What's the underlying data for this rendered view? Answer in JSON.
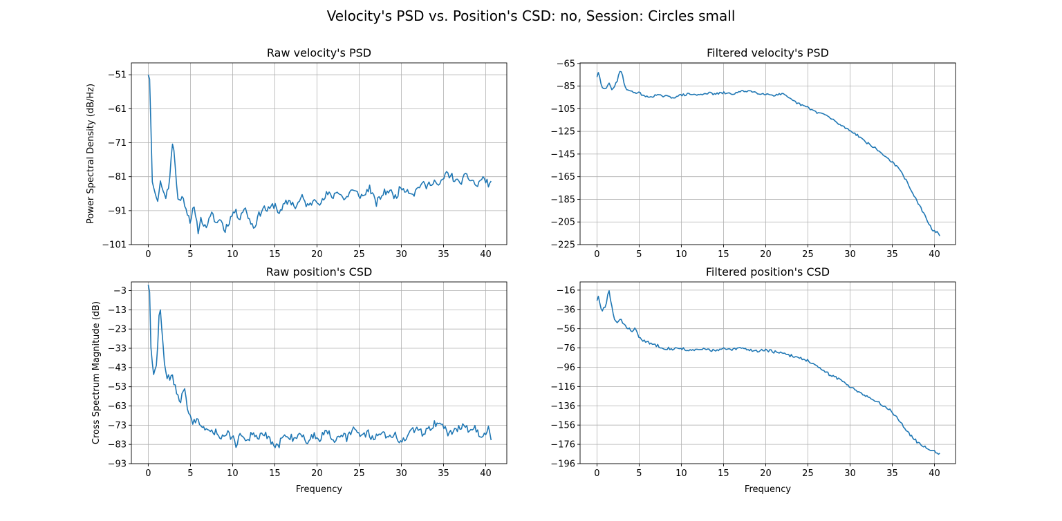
{
  "figure": {
    "title": "Velocity's PSD vs. Position's CSD: no, Session: Circles small",
    "line_color": "#1f77b4",
    "grid_color": "#b0b0b0",
    "grid": true
  },
  "chart_data": [
    {
      "id": "raw-velocity-psd",
      "type": "line",
      "title": "Raw velocity's PSD",
      "xlabel": "",
      "ylabel": "Power Spectral Density (dB/Hz)",
      "xlim": [
        -2,
        42.5
      ],
      "ylim": [
        -101,
        -47.5
      ],
      "xticks": [
        0,
        5,
        10,
        15,
        20,
        25,
        30,
        35,
        40
      ],
      "yticks": [
        -101,
        -91,
        -81,
        -71,
        -61,
        -51
      ],
      "x_start": 0,
      "x_step": 0.16,
      "x_count": 255,
      "anchors": [
        [
          0,
          -51
        ],
        [
          0.25,
          -53
        ],
        [
          0.4,
          -82
        ],
        [
          0.7,
          -84
        ],
        [
          0.9,
          -86.5
        ],
        [
          1.1,
          -87.5
        ],
        [
          1.4,
          -85
        ],
        [
          1.5,
          -80
        ],
        [
          1.7,
          -86
        ],
        [
          1.9,
          -85
        ],
        [
          2.1,
          -87
        ],
        [
          2.3,
          -85
        ],
        [
          2.5,
          -83
        ],
        [
          2.8,
          -72
        ],
        [
          2.95,
          -71
        ],
        [
          3.2,
          -78
        ],
        [
          3.5,
          -88
        ],
        [
          3.9,
          -87
        ],
        [
          4.3,
          -88.5
        ],
        [
          4.7,
          -92
        ],
        [
          5,
          -94
        ],
        [
          5.4,
          -90
        ],
        [
          5.6,
          -93
        ],
        [
          5.9,
          -97
        ],
        [
          6.3,
          -93
        ],
        [
          6.7,
          -96
        ],
        [
          7.2,
          -94
        ],
        [
          7.6,
          -92
        ],
        [
          8.1,
          -95
        ],
        [
          8.6,
          -93
        ],
        [
          9,
          -97
        ],
        [
          9.6,
          -94
        ],
        [
          10.2,
          -91
        ],
        [
          10.8,
          -93
        ],
        [
          11.4,
          -90
        ],
        [
          11.9,
          -93
        ],
        [
          12.5,
          -96
        ],
        [
          13,
          -93
        ],
        [
          13.6,
          -90
        ],
        [
          14.2,
          -91
        ],
        [
          15,
          -89
        ],
        [
          15.6,
          -92
        ],
        [
          16.2,
          -89
        ],
        [
          16.8,
          -88
        ],
        [
          17.5,
          -90
        ],
        [
          18.2,
          -87
        ],
        [
          19,
          -90
        ],
        [
          19.8,
          -87
        ],
        [
          20.5,
          -89
        ],
        [
          21.2,
          -86
        ],
        [
          21.8,
          -87
        ],
        [
          22.5,
          -85
        ],
        [
          23.3,
          -88
        ],
        [
          24,
          -85
        ],
        [
          24.8,
          -86
        ],
        [
          25.5,
          -87
        ],
        [
          26.2,
          -84
        ],
        [
          27,
          -89
        ],
        [
          27.8,
          -86
        ],
        [
          28.5,
          -85
        ],
        [
          29.3,
          -87
        ],
        [
          30,
          -84
        ],
        [
          30.8,
          -85
        ],
        [
          31.5,
          -86
        ],
        [
          32.3,
          -83
        ],
        [
          33,
          -84
        ],
        [
          33.8,
          -82
        ],
        [
          34.5,
          -84
        ],
        [
          35.3,
          -80
        ],
        [
          36,
          -81
        ],
        [
          36.8,
          -83
        ],
        [
          37.6,
          -81
        ],
        [
          38.4,
          -82
        ],
        [
          39,
          -84
        ],
        [
          39.6,
          -81
        ],
        [
          40.2,
          -83
        ],
        [
          40.5,
          -83
        ]
      ],
      "noise_amp": 1.1,
      "seed": 11
    },
    {
      "id": "filtered-velocity-psd",
      "type": "line",
      "title": "Filtered velocity's PSD",
      "xlabel": "",
      "ylabel": "",
      "xlim": [
        -2,
        42.5
      ],
      "ylim": [
        -225,
        -64.5
      ],
      "xticks": [
        0,
        5,
        10,
        15,
        20,
        25,
        30,
        35,
        40
      ],
      "yticks": [
        -225,
        -205,
        -185,
        -165,
        -145,
        -125,
        -105,
        -85,
        -65
      ],
      "x_start": 0,
      "x_step": 0.16,
      "x_count": 255,
      "anchors": [
        [
          0,
          -77
        ],
        [
          0.2,
          -72
        ],
        [
          0.5,
          -84
        ],
        [
          0.8,
          -88
        ],
        [
          1.2,
          -87
        ],
        [
          1.4,
          -81
        ],
        [
          1.7,
          -88
        ],
        [
          2,
          -86
        ],
        [
          2.4,
          -81
        ],
        [
          2.7,
          -72
        ],
        [
          3,
          -73
        ],
        [
          3.3,
          -86
        ],
        [
          4,
          -90
        ],
        [
          5,
          -91
        ],
        [
          6,
          -95
        ],
        [
          7,
          -93
        ],
        [
          8,
          -94
        ],
        [
          9,
          -95
        ],
        [
          10,
          -93
        ],
        [
          11,
          -92
        ],
        [
          12,
          -93
        ],
        [
          13,
          -91
        ],
        [
          14,
          -92
        ],
        [
          15,
          -91
        ],
        [
          16,
          -92
        ],
        [
          17,
          -90
        ],
        [
          18,
          -89
        ],
        [
          19,
          -91
        ],
        [
          20,
          -92
        ],
        [
          21,
          -93
        ],
        [
          22,
          -92
        ],
        [
          23,
          -97
        ],
        [
          24,
          -101
        ],
        [
          25,
          -104
        ],
        [
          26,
          -108
        ],
        [
          27,
          -110
        ],
        [
          28,
          -115
        ],
        [
          29,
          -120
        ],
        [
          30,
          -124
        ],
        [
          31,
          -129
        ],
        [
          32,
          -135
        ],
        [
          33,
          -140
        ],
        [
          34,
          -146
        ],
        [
          35,
          -152
        ],
        [
          36,
          -160
        ],
        [
          37,
          -173
        ],
        [
          38,
          -188
        ],
        [
          38.8,
          -198
        ],
        [
          39.3,
          -207
        ],
        [
          39.8,
          -212
        ],
        [
          40.3,
          -214
        ],
        [
          40.6,
          -217
        ]
      ],
      "noise_amp": 1.0,
      "seed": 29
    },
    {
      "id": "raw-position-csd",
      "type": "line",
      "title": "Raw position's CSD",
      "xlabel": "Frequency",
      "ylabel": "Cross Spectrum Magnitude (dB)",
      "xlim": [
        -2,
        42.5
      ],
      "ylim": [
        -93,
        1.5
      ],
      "xticks": [
        0,
        5,
        10,
        15,
        20,
        25,
        30,
        35,
        40
      ],
      "yticks": [
        -93,
        -83,
        -73,
        -63,
        -53,
        -43,
        -33,
        -23,
        -13,
        -3
      ],
      "x_start": 0,
      "x_step": 0.16,
      "x_count": 255,
      "anchors": [
        [
          0,
          0
        ],
        [
          0.15,
          -2
        ],
        [
          0.35,
          -38
        ],
        [
          0.5,
          -41
        ],
        [
          0.65,
          -46
        ],
        [
          0.9,
          -43
        ],
        [
          1.1,
          -33
        ],
        [
          1.3,
          -15
        ],
        [
          1.45,
          -14
        ],
        [
          1.65,
          -26
        ],
        [
          1.9,
          -40
        ],
        [
          2.2,
          -47
        ],
        [
          2.6,
          -50
        ],
        [
          2.8,
          -46
        ],
        [
          3.1,
          -53
        ],
        [
          3.4,
          -55
        ],
        [
          3.7,
          -60
        ],
        [
          4.1,
          -58
        ],
        [
          4.3,
          -54
        ],
        [
          4.6,
          -62
        ],
        [
          5,
          -69
        ],
        [
          5.4,
          -72
        ],
        [
          5.8,
          -70
        ],
        [
          6.3,
          -76
        ],
        [
          6.8,
          -74
        ],
        [
          7.3,
          -78
        ],
        [
          8,
          -76
        ],
        [
          8.6,
          -79
        ],
        [
          9.2,
          -77
        ],
        [
          10,
          -79
        ],
        [
          10.4,
          -83
        ],
        [
          11,
          -77
        ],
        [
          11.6,
          -82
        ],
        [
          12.2,
          -78
        ],
        [
          13,
          -80
        ],
        [
          13.6,
          -77
        ],
        [
          14.4,
          -81
        ],
        [
          15.3,
          -85
        ],
        [
          15.8,
          -80
        ],
        [
          16.5,
          -78
        ],
        [
          17.2,
          -80
        ],
        [
          18,
          -77
        ],
        [
          18.8,
          -82
        ],
        [
          19.6,
          -78
        ],
        [
          20.4,
          -80
        ],
        [
          21.2,
          -75
        ],
        [
          22,
          -81
        ],
        [
          22.8,
          -77
        ],
        [
          23.6,
          -80
        ],
        [
          24.4,
          -75
        ],
        [
          25.2,
          -78
        ],
        [
          26,
          -77
        ],
        [
          26.8,
          -80
        ],
        [
          27.6,
          -76
        ],
        [
          28.4,
          -80
        ],
        [
          29.2,
          -77
        ],
        [
          30,
          -83
        ],
        [
          30.8,
          -78
        ],
        [
          31.6,
          -75
        ],
        [
          32.4,
          -77
        ],
        [
          33.2,
          -75
        ],
        [
          34,
          -72
        ],
        [
          34.8,
          -72
        ],
        [
          35.6,
          -78
        ],
        [
          36.4,
          -75
        ],
        [
          37.2,
          -73
        ],
        [
          38,
          -76
        ],
        [
          38.8,
          -74
        ],
        [
          39.4,
          -81
        ],
        [
          40,
          -76
        ],
        [
          40.3,
          -74
        ],
        [
          40.6,
          -82
        ]
      ],
      "noise_amp": 2.0,
      "seed": 47
    },
    {
      "id": "filtered-position-csd",
      "type": "line",
      "title": "Filtered position's CSD",
      "xlabel": "Frequency",
      "ylabel": "",
      "xlim": [
        -2,
        42.5
      ],
      "ylim": [
        -196,
        -7.5
      ],
      "xticks": [
        0,
        5,
        10,
        15,
        20,
        25,
        30,
        35,
        40
      ],
      "yticks": [
        -196,
        -176,
        -156,
        -136,
        -116,
        -96,
        -76,
        -56,
        -36,
        -16
      ],
      "x_start": 0,
      "x_step": 0.16,
      "x_count": 255,
      "anchors": [
        [
          0,
          -27
        ],
        [
          0.15,
          -22
        ],
        [
          0.35,
          -30
        ],
        [
          0.55,
          -38
        ],
        [
          0.8,
          -35
        ],
        [
          1.05,
          -34
        ],
        [
          1.3,
          -20
        ],
        [
          1.45,
          -17
        ],
        [
          1.7,
          -30
        ],
        [
          2,
          -45
        ],
        [
          2.4,
          -50
        ],
        [
          2.8,
          -47
        ],
        [
          3.2,
          -51
        ],
        [
          3.6,
          -55
        ],
        [
          4.1,
          -58
        ],
        [
          4.5,
          -56
        ],
        [
          5,
          -65
        ],
        [
          5.6,
          -69
        ],
        [
          6.2,
          -71
        ],
        [
          7,
          -73
        ],
        [
          8,
          -76
        ],
        [
          9,
          -77
        ],
        [
          10,
          -76
        ],
        [
          11,
          -79
        ],
        [
          12,
          -78
        ],
        [
          13,
          -77
        ],
        [
          14,
          -79
        ],
        [
          15,
          -77
        ],
        [
          16,
          -78
        ],
        [
          17,
          -76
        ],
        [
          18,
          -78
        ],
        [
          19,
          -79
        ],
        [
          20,
          -78
        ],
        [
          21,
          -80
        ],
        [
          22,
          -82
        ],
        [
          23,
          -84
        ],
        [
          24,
          -86
        ],
        [
          25,
          -89
        ],
        [
          26,
          -95
        ],
        [
          27,
          -101
        ],
        [
          28,
          -105
        ],
        [
          29,
          -110
        ],
        [
          30,
          -116
        ],
        [
          31,
          -121
        ],
        [
          32,
          -126
        ],
        [
          33,
          -131
        ],
        [
          34,
          -136
        ],
        [
          35,
          -142
        ],
        [
          36,
          -153
        ],
        [
          37,
          -165
        ],
        [
          38,
          -174
        ],
        [
          39,
          -179
        ],
        [
          40,
          -183
        ],
        [
          40.5,
          -186
        ]
      ],
      "noise_amp": 1.5,
      "seed": 83
    }
  ]
}
